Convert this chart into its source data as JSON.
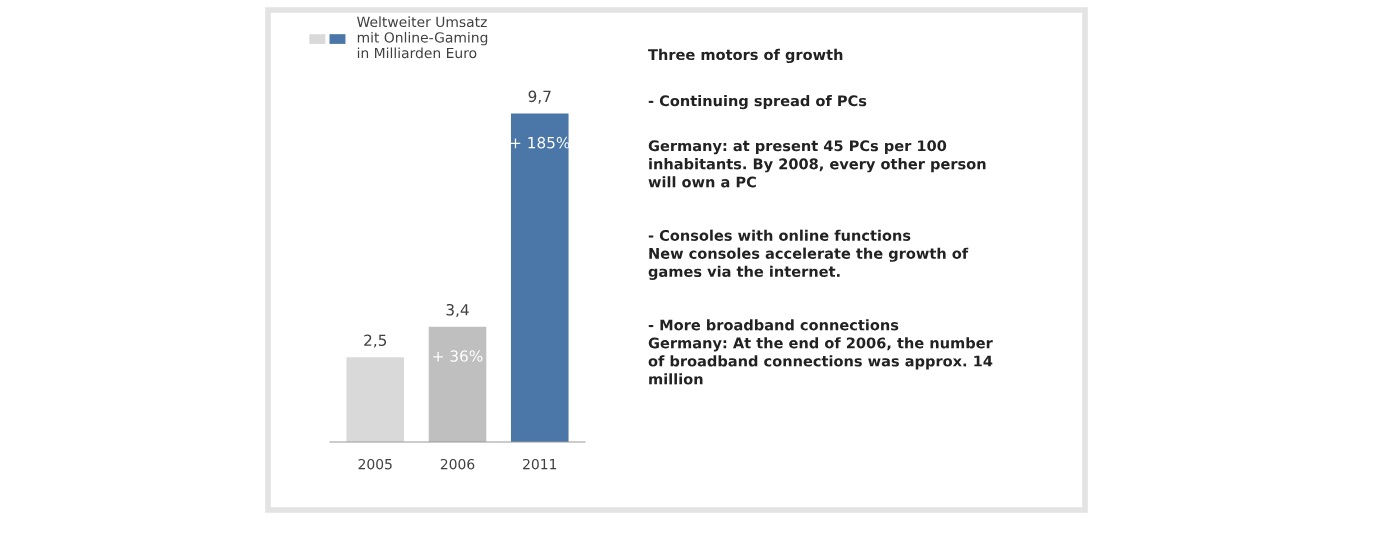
{
  "chart_data": [
    {
      "type": "bar",
      "categories": [
        "2005",
        "2006",
        "2011"
      ],
      "series": [
        {
          "name": "Weltweiter Umsatz\nmit Online-Gaming\nin Milliarden Euro",
          "colors": [
            "#d9d9d9",
            "#bfbfbf",
            "#4a76a8"
          ],
          "values": [
            2.5,
            3.4,
            9.7
          ],
          "value_labels": [
            "2,5",
            "3,4",
            "9,7"
          ]
        }
      ],
      "annotations": [
        "+ 36%",
        "+ 185%"
      ],
      "legend": "top left"
    },
    {
      "type": "other",
      "title": "Three motors of growth",
      "annotations": [
        "- Continuing spread of PCs",
        "Germany: at present 45 PCs per 100\ninhabitants. By 2008, every other person\nwill own a PC",
        "- Consoles with online functions\nNew consoles accelerate the growth of\ngames via the internet.",
        "- More broadband connections\nGermany: At the end of 2006, the number\nof broadband connections was approx. 14\nmillion"
      ]
    }
  ]
}
